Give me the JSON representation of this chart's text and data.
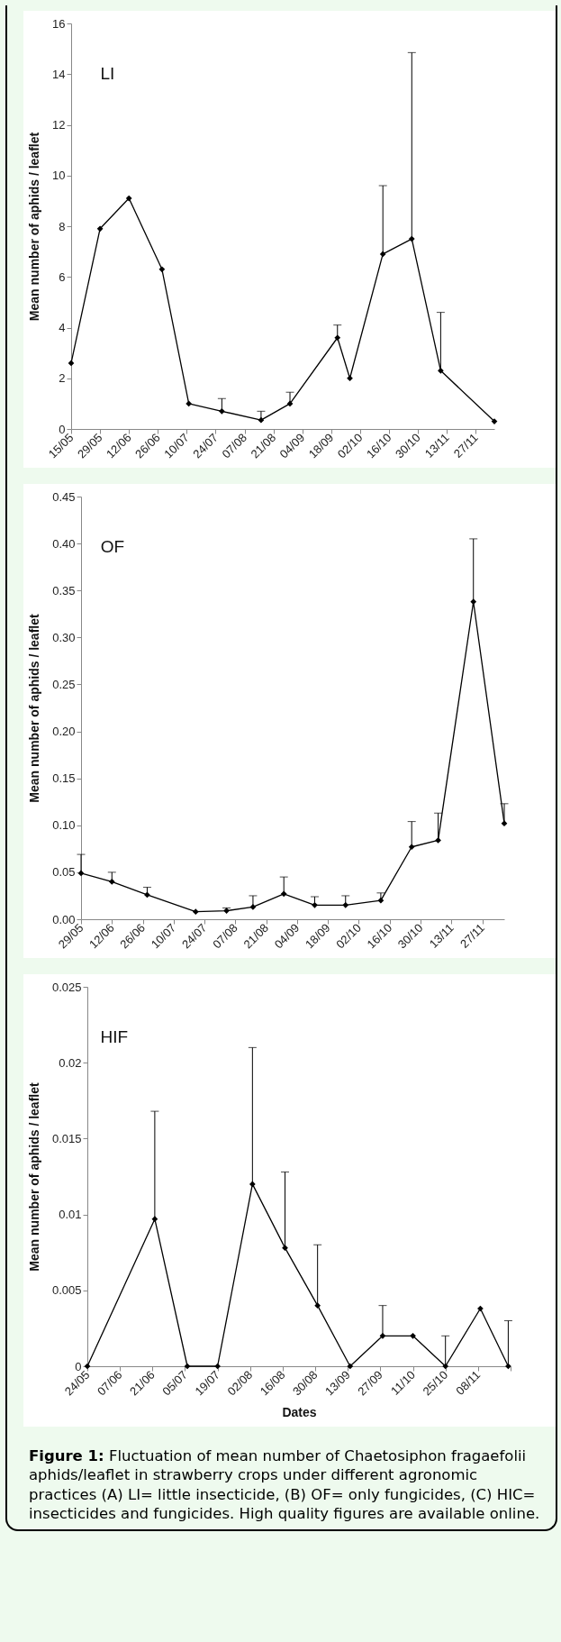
{
  "chart_data": [
    {
      "type": "line",
      "title": "LI",
      "ylabel": "Mean number of aphids / leaflet",
      "marker": "diamond",
      "line_style": "solid",
      "grid": false,
      "x": [
        "--05-15",
        "--05-29",
        "--06-12",
        "--06-28",
        "--07-11",
        "--07-27",
        "--08-15",
        "--08-29",
        "--09-21",
        "--09-27",
        "--10-13",
        "--10-27",
        "--11-10",
        "--12-06"
      ],
      "series": [
        {
          "color": "#000000",
          "values": [
            2.6,
            7.9,
            9.1,
            6.3,
            1.0,
            0.7,
            0.35,
            1.0,
            3.6,
            2.0,
            6.9,
            7.5,
            2.3,
            0.3
          ],
          "errors": [
            null,
            null,
            null,
            null,
            null,
            [
              0.7,
              1.2
            ],
            [
              0.35,
              0.7
            ],
            [
              1.0,
              1.45
            ],
            [
              3.6,
              4.1
            ],
            null,
            [
              6.9,
              9.6
            ],
            [
              7.5,
              14.85
            ],
            [
              2.3,
              4.6
            ],
            null
          ]
        }
      ],
      "xlim": [
        "--05-15",
        "--12-06"
      ],
      "xticks": [
        {
          "value": "--05-15",
          "label": "15/05"
        },
        {
          "value": "--05-29",
          "label": "29/05"
        },
        {
          "value": "--06-12",
          "label": "12/06"
        },
        {
          "value": "--06-26",
          "label": "26/06"
        },
        {
          "value": "--07-10",
          "label": "10/07"
        },
        {
          "value": "--07-24",
          "label": "24/07"
        },
        {
          "value": "--08-07",
          "label": "07/08"
        },
        {
          "value": "--08-21",
          "label": "21/08"
        },
        {
          "value": "--09-04",
          "label": "04/09"
        },
        {
          "value": "--09-18",
          "label": "18/09"
        },
        {
          "value": "--10-02",
          "label": "02/10"
        },
        {
          "value": "--10-16",
          "label": "16/10"
        },
        {
          "value": "--10-30",
          "label": "30/10"
        },
        {
          "value": "--11-13",
          "label": "13/11"
        },
        {
          "value": "--11-27",
          "label": "27/11"
        }
      ],
      "ylim": [
        0,
        16
      ],
      "yticks": [
        0,
        2,
        4,
        6,
        8,
        10,
        12,
        14,
        16
      ]
    },
    {
      "type": "line",
      "title": "OF",
      "ylabel": "Mean number of aphids / leaflet",
      "marker": "diamond",
      "line_style": "solid",
      "grid": false,
      "x": [
        "--05-29",
        "--06-12",
        "--06-28",
        "--07-20",
        "--08-03",
        "--08-15",
        "--08-29",
        "--09-12",
        "--09-26",
        "--10-12",
        "--10-26",
        "--11-07",
        "--11-23",
        "--12-07"
      ],
      "series": [
        {
          "color": "#000000",
          "values": [
            0.049,
            0.04,
            0.026,
            0.008,
            0.009,
            0.013,
            0.027,
            0.015,
            0.015,
            0.02,
            0.077,
            0.084,
            0.338,
            0.102
          ],
          "errors": [
            [
              0.049,
              0.069
            ],
            [
              0.04,
              0.05
            ],
            [
              0.026,
              0.034
            ],
            null,
            [
              0.009,
              0.012
            ],
            [
              0.013,
              0.025
            ],
            [
              0.027,
              0.045
            ],
            [
              0.015,
              0.024
            ],
            [
              0.015,
              0.025
            ],
            [
              0.02,
              0.028
            ],
            [
              0.077,
              0.104
            ],
            [
              0.084,
              0.113
            ],
            [
              0.338,
              0.405
            ],
            [
              0.102,
              0.123
            ]
          ]
        }
      ],
      "xlim": [
        "--05-29",
        "--12-07"
      ],
      "xticks": [
        {
          "value": "--05-29",
          "label": "29/05"
        },
        {
          "value": "--06-12",
          "label": "12/06"
        },
        {
          "value": "--06-26",
          "label": "26/06"
        },
        {
          "value": "--07-10",
          "label": "10/07"
        },
        {
          "value": "--07-24",
          "label": "24/07"
        },
        {
          "value": "--08-07",
          "label": "07/08"
        },
        {
          "value": "--08-21",
          "label": "21/08"
        },
        {
          "value": "--09-04",
          "label": "04/09"
        },
        {
          "value": "--09-18",
          "label": "18/09"
        },
        {
          "value": "--10-02",
          "label": "02/10"
        },
        {
          "value": "--10-16",
          "label": "16/10"
        },
        {
          "value": "--10-30",
          "label": "30/10"
        },
        {
          "value": "--11-13",
          "label": "13/11"
        },
        {
          "value": "--11-27",
          "label": "27/11"
        }
      ],
      "ylim": [
        0,
        0.45
      ],
      "yticks": [
        {
          "value": 0,
          "label": "0.00"
        },
        {
          "value": 0.05,
          "label": "0.05"
        },
        {
          "value": 0.1,
          "label": "0.10"
        },
        {
          "value": 0.15,
          "label": "0.15"
        },
        {
          "value": 0.2,
          "label": "0.20"
        },
        {
          "value": 0.25,
          "label": "0.25"
        },
        {
          "value": 0.3,
          "label": "0.30"
        },
        {
          "value": 0.35,
          "label": "0.35"
        },
        {
          "value": 0.4,
          "label": "0.40"
        },
        {
          "value": 0.45,
          "label": "0.45"
        }
      ]
    },
    {
      "type": "line",
      "title": "HIF",
      "xlabel": "Dates",
      "ylabel": "Mean number of aphids / leaflet",
      "marker": "diamond",
      "line_style": "solid",
      "grid": false,
      "x": [
        "--05-24",
        "--06-22",
        "--07-06",
        "--07-19",
        "--08-03",
        "--08-17",
        "--08-31",
        "--09-14",
        "--09-28",
        "--10-11",
        "--10-25",
        "--11-09",
        "--11-21"
      ],
      "series": [
        {
          "color": "#000000",
          "values": [
            0,
            0.0097,
            0,
            0,
            0.012,
            0.0078,
            0.004,
            0,
            0.002,
            0.002,
            0,
            0.0038,
            0
          ],
          "errors": [
            null,
            [
              0.0097,
              0.0168
            ],
            null,
            null,
            [
              0.012,
              0.021
            ],
            [
              0.0078,
              0.0128
            ],
            [
              0.004,
              0.008
            ],
            null,
            [
              0.002,
              0.004
            ],
            null,
            [
              0,
              0.002
            ],
            null,
            [
              0,
              0.003
            ]
          ]
        }
      ],
      "xlim": [
        "--05-24",
        "--11-22"
      ],
      "xticks": [
        {
          "value": "--05-24",
          "label": "24/05"
        },
        {
          "value": "--06-07",
          "label": "07/06"
        },
        {
          "value": "--06-21",
          "label": "21/06"
        },
        {
          "value": "--07-05",
          "label": "05/07"
        },
        {
          "value": "--07-19",
          "label": "19/07"
        },
        {
          "value": "--08-02",
          "label": "02/08"
        },
        {
          "value": "--08-16",
          "label": "16/08"
        },
        {
          "value": "--08-30",
          "label": "30/08"
        },
        {
          "value": "--09-13",
          "label": "13/09"
        },
        {
          "value": "--09-27",
          "label": "27/09"
        },
        {
          "value": "--10-11",
          "label": "11/10"
        },
        {
          "value": "--10-25",
          "label": "25/10"
        },
        {
          "value": "--11-08",
          "label": "08/11"
        },
        {
          "value": "--11-22",
          "label": null
        }
      ],
      "ylim": [
        0,
        0.025
      ],
      "yticks": [
        0,
        0.005,
        0.01,
        0.015,
        0.02,
        0.025
      ],
      "annotations": [
        "Figure 1:",
        "Fluctuation of mean number of Chaetosiphon fragaefolii aphids/leaflet in strawberry crops under different agronomic practices (A) LI= little insecticide, (B) OF= only fungicides, (C) HIC= insecticides and fungicides. High quality figures are available online."
      ]
    }
  ]
}
